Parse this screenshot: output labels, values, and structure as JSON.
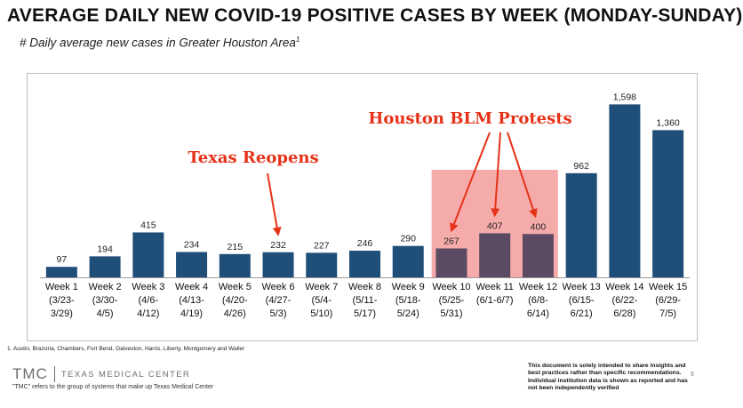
{
  "title": "AVERAGE DAILY NEW COVID-19 POSITIVE CASES BY WEEK (MONDAY-SUNDAY)",
  "subtitle": "# Daily average new cases in Greater Houston Area",
  "subtitle_footnote_mark": "1",
  "chart_data": {
    "type": "bar",
    "categories": [
      [
        "Week 1",
        "(3/23-",
        "3/29)"
      ],
      [
        "Week 2",
        "(3/30-",
        "4/5)"
      ],
      [
        "Week 3",
        "(4/6-",
        "4/12)"
      ],
      [
        "Week 4",
        "(4/13-",
        "4/19)"
      ],
      [
        "Week 5",
        "(4/20-",
        "4/26)"
      ],
      [
        "Week 6",
        "(4/27-",
        "5/3)"
      ],
      [
        "Week 7",
        "(5/4-",
        "5/10)"
      ],
      [
        "Week 8",
        "(5/11-",
        "5/17)"
      ],
      [
        "Week 9",
        "(5/18-",
        "5/24)"
      ],
      [
        "Week 10",
        "(5/25-",
        "5/31)"
      ],
      [
        "Week 11",
        "(6/1-6/7)"
      ],
      [
        "Week 12",
        "(6/8-",
        "6/14)"
      ],
      [
        "Week 13",
        "(6/15-",
        "6/21)"
      ],
      [
        "Week 14",
        "(6/22-",
        "6/28)"
      ],
      [
        "Week 15",
        "(6/29-",
        "7/5)"
      ]
    ],
    "values": [
      97,
      194,
      415,
      234,
      215,
      232,
      227,
      246,
      290,
      267,
      407,
      400,
      962,
      1598,
      1360
    ],
    "data_labels": [
      "97",
      "194",
      "415",
      "234",
      "215",
      "232",
      "227",
      "246",
      "290",
      "267",
      "407",
      "400",
      "962",
      "1,598",
      "1,360"
    ],
    "ylim": [
      0,
      1700
    ],
    "grid": false,
    "bar_color": "#1f4e79",
    "highlight": {
      "from_index": 9,
      "to_index": 11,
      "color": "#f6a7a7"
    },
    "annotations": [
      {
        "text": "Texas Reopens",
        "targets": [
          5
        ]
      },
      {
        "text": "Houston BLM Protests",
        "targets": [
          9,
          10,
          11
        ]
      }
    ],
    "annotation_color": "#e53218"
  },
  "footnote": "1. Austin, Brazoria, Chambers, Fort Bend, Galveston, Harris, Liberty, Montgomery and Waller",
  "logo": {
    "abbr": "TMC",
    "name": "TEXAS MEDICAL CENTER",
    "note": "\"TMC\" refers to the group of systems that make up Texas Medical Center"
  },
  "disclaimer": "This document is solely intended to share insights and best practices rather than specific recommendations. Individual institution data is shown as reported and has not been independently verified",
  "page_number": "6"
}
